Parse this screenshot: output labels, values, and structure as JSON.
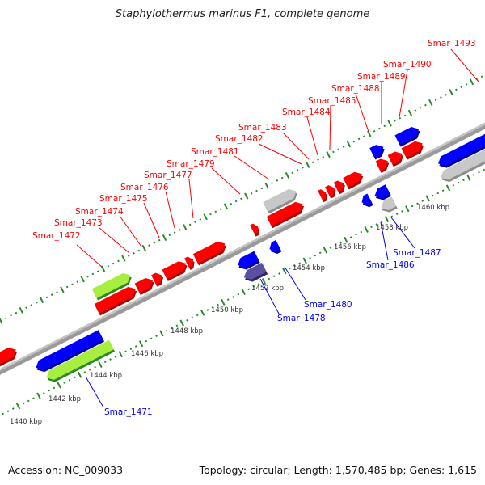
{
  "title": "Staphylothermus marinus F1, complete genome",
  "footer": {
    "accession": "Accession: NC_009033",
    "summary": "Topology: circular; Length: 1,570,485 bp; Genes: 1,615"
  },
  "colors": {
    "forward_gene": "#ff0000",
    "reverse_gene": "#0000ff",
    "rna": "#c8c8c8",
    "green_light": "#a8ee40",
    "green_dark": "#2a8a2a",
    "purple": "#4b3f8f",
    "backbone": "#9a9a9a",
    "tick": "#2a8a2a"
  },
  "forward_labels": [
    "Smar_1472",
    "Smar_1473",
    "Smar_1474",
    "Smar_1475",
    "Smar_1476",
    "Smar_1477",
    "Smar_1479",
    "Smar_1481",
    "Smar_1482",
    "Smar_1483",
    "Smar_1484",
    "Smar_1485",
    "Smar_1488",
    "Smar_1489",
    "Smar_1490",
    "Smar_1493"
  ],
  "reverse_labels": [
    "Smar_1471",
    "Smar_1478",
    "Smar_1480",
    "Smar_1486",
    "Smar_1487"
  ],
  "kbp_labels": [
    "1440 kbp",
    "1442 kbp",
    "1444 kbp",
    "1446 kbp",
    "1448 kbp",
    "1450 kbp",
    "1452 kbp",
    "1454 kbp",
    "1456 kbp",
    "1458 kbp",
    "1460 kbp"
  ]
}
